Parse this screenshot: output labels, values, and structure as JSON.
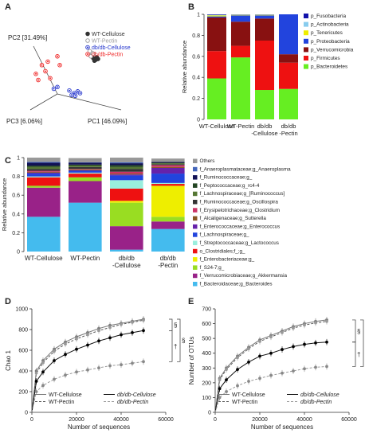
{
  "panel_letters": [
    "A",
    "B",
    "C",
    "D",
    "E"
  ],
  "colors": {
    "wt_cellulose": "#333333",
    "wt_pectin": "#aaaaaa",
    "db_cellulose": "#2233cc",
    "db_pectin": "#ee2222"
  },
  "chart_data": [
    {
      "panel": "A",
      "type": "scatter",
      "axes": {
        "pc1": "PC1 [46.09%]",
        "pc2": "PC2 [31.49%]",
        "pc3": "PC3 [6.06%]"
      },
      "legend": [
        "WT-Cellulose",
        "WT-Pectin",
        "db/db-Cellulose",
        "db/db-Pectin"
      ],
      "series": [
        {
          "name": "WT-Cellulose",
          "marker": "filled-gray",
          "points": [
            [
              0.58,
              0.7
            ],
            [
              0.6,
              0.68
            ],
            [
              0.62,
              0.69
            ],
            [
              0.59,
              0.67
            ],
            [
              0.61,
              0.71
            ]
          ]
        },
        {
          "name": "WT-Pectin",
          "marker": "open-gray",
          "points": [
            [
              0.55,
              0.74
            ],
            [
              0.57,
              0.76
            ],
            [
              0.56,
              0.72
            ],
            [
              0.58,
              0.75
            ],
            [
              0.55,
              0.78
            ]
          ]
        },
        {
          "name": "db/db-Cellulose",
          "marker": "blue",
          "points": [
            [
              0.25,
              0.35
            ],
            [
              0.38,
              0.33
            ],
            [
              0.42,
              0.3
            ],
            [
              0.45,
              0.32
            ],
            [
              0.4,
              0.28
            ],
            [
              0.43,
              0.27
            ],
            [
              0.47,
              0.3
            ],
            [
              0.28,
              0.37
            ]
          ]
        },
        {
          "name": "db/db-Pectin",
          "marker": "red",
          "points": [
            [
              0.1,
              0.52
            ],
            [
              0.15,
              0.62
            ],
            [
              0.2,
              0.66
            ],
            [
              0.28,
              0.72
            ],
            [
              0.3,
              0.62
            ],
            [
              0.18,
              0.55
            ],
            [
              0.22,
              0.47
            ],
            [
              0.12,
              0.45
            ]
          ]
        }
      ]
    },
    {
      "panel": "B",
      "type": "bar",
      "stacked": true,
      "ylabel": "Relative abundance",
      "ylim": [
        0,
        1
      ],
      "yticks": [
        "0",
        "0.2",
        "0.4",
        "0.6",
        "0.8",
        "1"
      ],
      "categories": [
        "WT-Cellulose",
        "WT-Pectin",
        "db/db\n-Cellulose",
        "db/db\n-Pectin"
      ],
      "series": [
        {
          "name": "p_Bacteroidetes",
          "color": "#66ee22",
          "values": [
            0.39,
            0.59,
            0.28,
            0.29
          ]
        },
        {
          "name": "p_Firmicutes",
          "color": "#ee1111",
          "values": [
            0.26,
            0.11,
            0.47,
            0.25
          ]
        },
        {
          "name": "p_Verrucomicrobia",
          "color": "#881111",
          "values": [
            0.32,
            0.23,
            0.21,
            0.08
          ]
        },
        {
          "name": "p_Proteobacteria",
          "color": "#2244dd",
          "values": [
            0.01,
            0.06,
            0.03,
            0.38
          ]
        },
        {
          "name": "p_Tenericutes",
          "color": "#eeee00",
          "values": [
            0.01,
            0.005,
            0.005,
            0.0
          ]
        },
        {
          "name": "p_Actinobacteria",
          "color": "#88ccee",
          "values": [
            0.005,
            0.003,
            0.003,
            0.0
          ]
        },
        {
          "name": "p_Fusobacteria",
          "color": "#1111aa",
          "values": [
            0.005,
            0.002,
            0.002,
            0.0
          ]
        }
      ],
      "legend_order": [
        "p_Fusobacteria",
        "p_Actinobacteria",
        "p_Tenericutes",
        "p_Proteobacteria",
        "p_Verrucomicrobia",
        "p_Firmicutes",
        "p_Bacteroidetes"
      ]
    },
    {
      "panel": "C",
      "type": "bar",
      "stacked": true,
      "ylabel": "Relative abundance",
      "ylim": [
        0,
        1
      ],
      "yticks": [
        "0",
        "0.2",
        "0.4",
        "0.6",
        "0.8",
        "1"
      ],
      "categories": [
        "WT-Cellulose",
        "WT-Pectin",
        "db/db\n-Cellulose",
        "db/db\n-Pectin"
      ],
      "series": [
        {
          "name": "f_Bacteroidaceae;g_Bacteroides",
          "color": "#44bbee",
          "values": [
            0.37,
            0.52,
            0.02,
            0.24
          ]
        },
        {
          "name": "f_Verrucomicrobiaceae;g_Akkermansia",
          "color": "#992288",
          "values": [
            0.31,
            0.23,
            0.25,
            0.08
          ]
        },
        {
          "name": "f_S24-7;g_",
          "color": "#99dd22",
          "values": [
            0.02,
            0.04,
            0.25,
            0.05
          ]
        },
        {
          "name": "f_Enterobacteriaceae;g_",
          "color": "#eeee00",
          "values": [
            0.0,
            0.0,
            0.02,
            0.33
          ]
        },
        {
          "name": "o_Clostridiales;f_;g_",
          "color": "#ee1111",
          "values": [
            0.09,
            0.04,
            0.13,
            0.02
          ]
        },
        {
          "name": "f_Streptococcaceae;g_Lactococcus",
          "color": "#99eedd",
          "values": [
            0.01,
            0.01,
            0.09,
            0.01
          ]
        },
        {
          "name": "f_Lachnospiraceae;g_",
          "color": "#2244dd",
          "values": [
            0.03,
            0.02,
            0.05,
            0.1
          ]
        },
        {
          "name": "f_Enterococcaceae;g_Enterococcus",
          "color": "#6622aa",
          "values": [
            0.01,
            0.005,
            0.01,
            0.06
          ]
        },
        {
          "name": "f_Alcaligenaceae;g_Sutterella",
          "color": "#885522",
          "values": [
            0.01,
            0.01,
            0.01,
            0.01
          ]
        },
        {
          "name": "f_Erysipelotrichaceae;g_Clostridium",
          "color": "#cc3366",
          "values": [
            0.01,
            0.005,
            0.02,
            0.02
          ]
        },
        {
          "name": "f_Ruminococcaceae;g_Oscillospira",
          "color": "#333333",
          "values": [
            0.02,
            0.02,
            0.03,
            0.01
          ]
        },
        {
          "name": "f_Lachnospiraceae;g_[Ruminococcus]",
          "color": "#557733",
          "values": [
            0.02,
            0.015,
            0.02,
            0.01
          ]
        },
        {
          "name": "f_Peptococcaceae;g_rc4-4",
          "color": "#224422",
          "values": [
            0.015,
            0.01,
            0.02,
            0.005
          ]
        },
        {
          "name": "f_Ruminococcaceae;g_",
          "color": "#111155",
          "values": [
            0.03,
            0.02,
            0.02,
            0.01
          ]
        },
        {
          "name": "f_Anaeroplasmataceae;g_Anaeroplasma",
          "color": "#4466bb",
          "values": [
            0.01,
            0.005,
            0.01,
            0.0
          ]
        },
        {
          "name": "Others",
          "color": "#999999",
          "values": [
            0.045,
            0.045,
            0.05,
            0.035
          ]
        }
      ],
      "legend_order": [
        "Others",
        "f_Anaeroplasmataceae;g_Anaeroplasma",
        "f_Ruminococcaceae;g_",
        "f_Peptococcaceae;g_rc4-4",
        "f_Lachnospiraceae;g_[Ruminococcus]",
        "f_Ruminococcaceae;g_Oscillospira",
        "f_Erysipelotrichaceae;g_Clostridium",
        "f_Alcaligenaceae;g_Sutterella",
        "f_Enterococcaceae;g_Enterococcus",
        "f_Lachnospiraceae;g_",
        "f_Streptococcaceae;g_Lactococcus",
        "o_Clostridiales;f_;g_",
        "f_Enterobacteriaceae;g_",
        "f_S24-7;g_",
        "f_Verrucomicrobiaceae;g_Akkermansia",
        "f_Bacteroidaceae;g_Bacteroides"
      ]
    },
    {
      "panel": "D",
      "type": "line",
      "xlabel": "Number of sequences",
      "ylabel": "Chao 1",
      "xlim": [
        0,
        60000
      ],
      "ylim": [
        0,
        1000
      ],
      "xticks": [
        "0",
        "20000",
        "40000",
        "60000"
      ],
      "yticks": [
        "0",
        "200",
        "400",
        "600",
        "800",
        "1000"
      ],
      "x": [
        0,
        2000,
        5000,
        10000,
        15000,
        20000,
        25000,
        30000,
        35000,
        40000,
        45000,
        50000
      ],
      "series": [
        {
          "name": "WT-Cellulose",
          "style": "solid-darkgray",
          "values": [
            0,
            400,
            500,
            610,
            680,
            730,
            770,
            810,
            840,
            860,
            880,
            900
          ]
        },
        {
          "name": "WT-Pectin",
          "style": "dashed-darkgray",
          "values": [
            0,
            380,
            480,
            590,
            660,
            710,
            750,
            790,
            820,
            850,
            870,
            890
          ]
        },
        {
          "name": "db/db-Cellulose",
          "style": "solid-black",
          "values": [
            0,
            300,
            390,
            500,
            560,
            610,
            650,
            690,
            720,
            750,
            770,
            790
          ]
        },
        {
          "name": "db/db-Pectin",
          "style": "dashed-gray",
          "values": [
            0,
            200,
            260,
            320,
            360,
            390,
            410,
            430,
            450,
            460,
            475,
            490
          ]
        }
      ],
      "annotations": [
        "§",
        "§",
        "†"
      ],
      "legend": [
        "WT-Cellulose",
        "db/db-Cellulose",
        "WT-Pectin",
        "db/db-Pectin"
      ]
    },
    {
      "panel": "E",
      "type": "line",
      "xlabel": "Number of sequences",
      "ylabel": "Number of OTUs",
      "xlim": [
        0,
        60000
      ],
      "ylim": [
        0,
        700
      ],
      "xticks": [
        "0",
        "20000",
        "40000",
        "60000"
      ],
      "yticks": [
        "0",
        "100",
        "200",
        "300",
        "400",
        "500",
        "600",
        "700"
      ],
      "x": [
        0,
        2000,
        5000,
        10000,
        15000,
        20000,
        25000,
        30000,
        35000,
        40000,
        45000,
        50000
      ],
      "series": [
        {
          "name": "WT-Cellulose",
          "style": "solid-darkgray",
          "values": [
            0,
            230,
            300,
            380,
            440,
            490,
            520,
            550,
            580,
            600,
            615,
            625
          ]
        },
        {
          "name": "WT-Pectin",
          "style": "dashed-darkgray",
          "values": [
            0,
            220,
            290,
            370,
            430,
            480,
            510,
            540,
            570,
            590,
            605,
            615
          ]
        },
        {
          "name": "db/db-Cellulose",
          "style": "solid-black",
          "values": [
            0,
            160,
            220,
            290,
            340,
            380,
            400,
            425,
            445,
            460,
            470,
            475
          ]
        },
        {
          "name": "db/db-Pectin",
          "style": "dashed-gray",
          "values": [
            0,
            100,
            140,
            180,
            210,
            230,
            250,
            265,
            280,
            295,
            305,
            310
          ]
        }
      ],
      "annotations": [
        "§",
        "§",
        "†"
      ],
      "legend": [
        "WT-Cellulose",
        "db/db-Cellulose",
        "WT-Pectin",
        "db/db-Pectin"
      ]
    }
  ]
}
